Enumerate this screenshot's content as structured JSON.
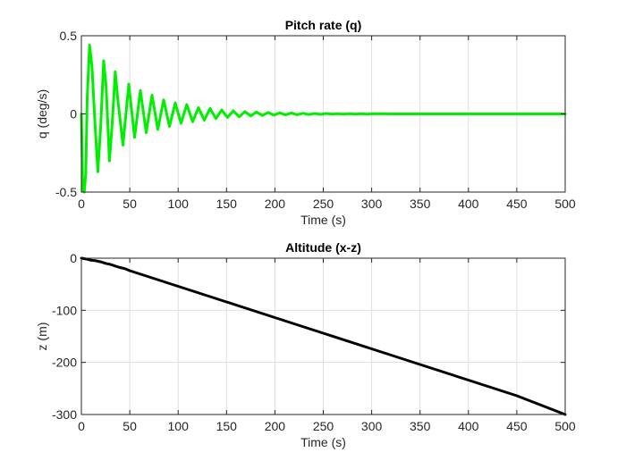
{
  "chart_data": [
    {
      "type": "line",
      "title": "Pitch rate (q)",
      "xlabel": "Time (s)",
      "ylabel": "q (deg/s)",
      "xlim": [
        0,
        500
      ],
      "ylim": [
        -0.5,
        0.5
      ],
      "xticks": [
        "0",
        "50",
        "100",
        "150",
        "200",
        "250",
        "300",
        "350",
        "400",
        "450",
        "500"
      ],
      "yticks": [
        "-0.5",
        "0",
        "0.5"
      ],
      "grid": true,
      "series": [
        {
          "color": "#00ee00",
          "x": [
            0,
            1.5,
            3,
            4.5,
            6,
            8.5,
            11,
            14,
            17,
            20,
            23,
            25.5,
            29,
            32,
            35,
            37.5,
            43,
            49,
            55,
            61,
            67,
            73,
            79,
            85,
            91,
            97,
            103,
            109,
            115,
            121,
            127,
            133,
            139,
            145,
            151,
            157,
            163,
            169,
            175,
            181,
            187,
            193,
            199,
            205,
            211,
            217,
            223,
            229,
            235,
            241,
            247,
            253,
            259,
            265,
            271,
            277,
            283,
            289,
            295,
            301,
            320,
            360,
            400,
            450,
            500
          ],
          "y": [
            0,
            -0.49,
            -0.5,
            -0.38,
            0.1,
            0.44,
            0.3,
            -0.05,
            -0.37,
            -0.08,
            0.34,
            0.18,
            -0.3,
            -0.05,
            0.27,
            0.1,
            -0.2,
            0.19,
            -0.15,
            0.15,
            -0.12,
            0.12,
            -0.1,
            0.09,
            -0.08,
            0.07,
            -0.06,
            0.06,
            -0.05,
            0.04,
            -0.04,
            0.035,
            -0.03,
            0.025,
            -0.022,
            0.02,
            -0.018,
            0.015,
            -0.013,
            0.012,
            -0.01,
            0.009,
            -0.008,
            0.007,
            -0.006,
            0.006,
            -0.005,
            0.004,
            -0.004,
            0.003,
            -0.003,
            0.003,
            -0.002,
            0.002,
            -0.002,
            0.002,
            -0.001,
            0.001,
            -0.001,
            0.001,
            0,
            0,
            0,
            0,
            0
          ]
        }
      ]
    },
    {
      "type": "line",
      "title": "Altitude (x-z)",
      "xlabel": "Time (s)",
      "ylabel": "z (m)",
      "xlim": [
        0,
        500
      ],
      "ylim": [
        -300,
        0
      ],
      "xticks": [
        "0",
        "50",
        "100",
        "150",
        "200",
        "250",
        "300",
        "350",
        "400",
        "450",
        "500"
      ],
      "yticks": [
        "-300",
        "-200",
        "-100",
        "0"
      ],
      "grid": true,
      "series": [
        {
          "color": "#000000",
          "x": [
            0,
            5,
            10,
            15,
            20,
            25,
            30,
            35,
            40,
            45,
            50,
            60,
            80,
            100,
            150,
            200,
            250,
            300,
            350,
            400,
            450,
            500
          ],
          "y": [
            0,
            -1.5,
            -4,
            -5,
            -7,
            -10,
            -12,
            -15,
            -18,
            -20,
            -24,
            -30,
            -42,
            -54,
            -84,
            -114,
            -144,
            -174,
            -204,
            -234,
            -264,
            -300
          ]
        }
      ]
    }
  ]
}
